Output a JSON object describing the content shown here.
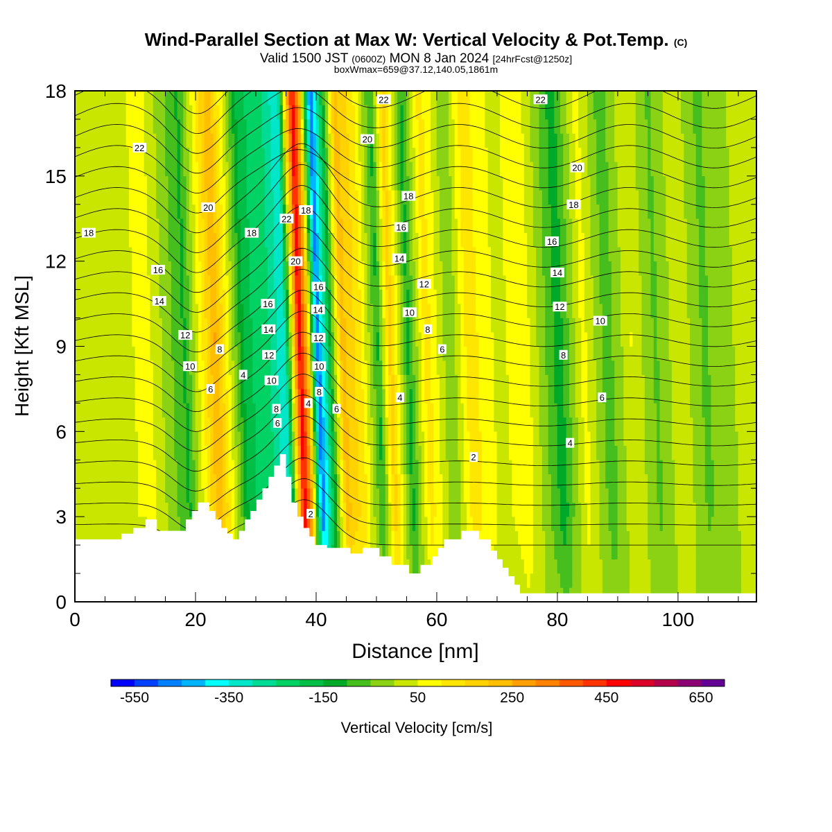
{
  "title": {
    "main": "Wind-Parallel Section at Max W: Vertical Velocity & Pot.Temp.",
    "copyright": "(C)",
    "valid_prefix": "Valid 1500 JST",
    "valid_z": "(0600Z)",
    "valid_date": "MON 8 Jan 2024",
    "forecast": "[24hrFcst@1250z]",
    "boxinfo": "boxWmax=659@37.12,140.05,1861m"
  },
  "chart_data": {
    "type": "heatmap",
    "xlabel": "Distance [nm]",
    "ylabel": "Height [Kft MSL]",
    "xlim": [
      0,
      113
    ],
    "ylim": [
      0,
      18
    ],
    "x_ticks": [
      0,
      20,
      40,
      60,
      80,
      100
    ],
    "x_tick_labels": [
      "0",
      "20",
      "40",
      "60",
      "80",
      "100"
    ],
    "y_ticks": [
      0,
      3,
      6,
      9,
      12,
      15,
      18
    ],
    "y_tick_labels": [
      "0",
      "3",
      "6",
      "9",
      "12",
      "15",
      "18"
    ],
    "colorbar": {
      "label": "Vertical Velocity [cm/s]",
      "levels_min": -600,
      "levels_step": 50,
      "tick_values": [
        -550,
        -350,
        -150,
        50,
        250,
        450,
        650
      ],
      "tick_labels": [
        "-550",
        "-350",
        "-150",
        "50",
        "250",
        "450",
        "650"
      ],
      "colors": [
        "#0000ff",
        "#0040ff",
        "#0080ff",
        "#00b4ff",
        "#00ffff",
        "#00e6c8",
        "#00dc96",
        "#00d264",
        "#00be46",
        "#00aa28",
        "#46be1e",
        "#8cd214",
        "#c8e600",
        "#ffff00",
        "#ffe600",
        "#ffd200",
        "#ffbe00",
        "#ffa000",
        "#ff8200",
        "#ff5a00",
        "#ff3200",
        "#ff0000",
        "#dc0028",
        "#b4004b",
        "#8c0073",
        "#640096"
      ]
    },
    "vertical_velocity_bands": [
      {
        "x": 2,
        "w": 20
      },
      {
        "x": 12,
        "w": 60
      },
      {
        "x": 18,
        "w": -110
      },
      {
        "x": 23,
        "w": 250
      },
      {
        "x": 28,
        "w": -180
      },
      {
        "x": 32,
        "w": -250
      },
      {
        "x": 34.5,
        "w": -350
      },
      {
        "x": 37,
        "w": 500
      },
      {
        "x": 38.2,
        "w": 250
      },
      {
        "x": 40,
        "w": -500
      },
      {
        "x": 42,
        "w": -150
      },
      {
        "x": 44,
        "w": 220
      },
      {
        "x": 47,
        "w": 120
      },
      {
        "x": 50,
        "w": -110
      },
      {
        "x": 52,
        "w": 180
      },
      {
        "x": 55,
        "w": -120
      },
      {
        "x": 58,
        "w": 130
      },
      {
        "x": 62,
        "w": -50
      },
      {
        "x": 65,
        "w": 130
      },
      {
        "x": 70,
        "w": 30
      },
      {
        "x": 74,
        "w": 90
      },
      {
        "x": 80,
        "w": -130
      },
      {
        "x": 84,
        "w": 70
      },
      {
        "x": 88,
        "w": -80
      },
      {
        "x": 92,
        "w": 50
      },
      {
        "x": 96,
        "w": -60
      },
      {
        "x": 100,
        "w": 40
      },
      {
        "x": 104,
        "w": -60
      },
      {
        "x": 109,
        "w": 0
      }
    ],
    "terrain": [
      [
        0,
        2.2
      ],
      [
        7.7,
        2.2
      ],
      [
        7.7,
        2.4
      ],
      [
        9.7,
        2.4
      ],
      [
        9.7,
        2.6
      ],
      [
        11.7,
        2.6
      ],
      [
        11.7,
        2.9
      ],
      [
        13.6,
        2.9
      ],
      [
        13.6,
        2.5
      ],
      [
        18.4,
        2.5
      ],
      [
        18.4,
        2.9
      ],
      [
        19.4,
        2.9
      ],
      [
        19.4,
        3.2
      ],
      [
        20.4,
        3.2
      ],
      [
        20.4,
        3.5
      ],
      [
        22.3,
        3.5
      ],
      [
        22.3,
        3.2
      ],
      [
        23.3,
        3.2
      ],
      [
        23.3,
        2.9
      ],
      [
        24.3,
        2.9
      ],
      [
        24.3,
        2.6
      ],
      [
        25.3,
        2.6
      ],
      [
        25.3,
        2.4
      ],
      [
        26.2,
        2.4
      ],
      [
        26.2,
        2.2
      ],
      [
        27.2,
        2.2
      ],
      [
        27.2,
        2.5
      ],
      [
        28.2,
        2.5
      ],
      [
        28.2,
        2.9
      ],
      [
        29.1,
        2.9
      ],
      [
        29.1,
        3.2
      ],
      [
        30.1,
        3.2
      ],
      [
        30.1,
        3.6
      ],
      [
        31.1,
        3.6
      ],
      [
        31.1,
        4.0
      ],
      [
        32.1,
        4.0
      ],
      [
        32.1,
        4.4
      ],
      [
        33.0,
        4.4
      ],
      [
        33.0,
        4.8
      ],
      [
        34.0,
        4.8
      ],
      [
        34.0,
        5.2
      ],
      [
        35.0,
        5.2
      ],
      [
        35.0,
        4.4
      ],
      [
        35.9,
        4.4
      ],
      [
        35.9,
        3.5
      ],
      [
        36.9,
        3.5
      ],
      [
        36.9,
        3.0
      ],
      [
        37.9,
        3.0
      ],
      [
        37.9,
        2.6
      ],
      [
        38.9,
        2.6
      ],
      [
        38.9,
        2.3
      ],
      [
        39.8,
        2.3
      ],
      [
        39.8,
        2.0
      ],
      [
        41.8,
        2.0
      ],
      [
        41.8,
        1.9
      ],
      [
        45.7,
        1.9
      ],
      [
        45.7,
        1.7
      ],
      [
        47.7,
        1.7
      ],
      [
        47.7,
        1.9
      ],
      [
        50.5,
        1.9
      ],
      [
        50.5,
        1.6
      ],
      [
        52.5,
        1.6
      ],
      [
        52.5,
        1.3
      ],
      [
        55.4,
        1.3
      ],
      [
        55.4,
        1.0
      ],
      [
        57.3,
        1.0
      ],
      [
        57.3,
        1.3
      ],
      [
        59.3,
        1.3
      ],
      [
        59.3,
        1.6
      ],
      [
        60.2,
        1.6
      ],
      [
        60.2,
        1.9
      ],
      [
        61.2,
        1.9
      ],
      [
        61.2,
        2.2
      ],
      [
        64.1,
        2.2
      ],
      [
        64.1,
        2.5
      ],
      [
        67.0,
        2.5
      ],
      [
        67.0,
        2.2
      ],
      [
        69.0,
        2.2
      ],
      [
        69.0,
        1.8
      ],
      [
        70.0,
        1.8
      ],
      [
        70.0,
        1.5
      ],
      [
        70.9,
        1.5
      ],
      [
        70.9,
        1.2
      ],
      [
        71.9,
        1.2
      ],
      [
        71.9,
        0.9
      ],
      [
        72.9,
        0.9
      ],
      [
        72.9,
        0.6
      ],
      [
        73.8,
        0.6
      ],
      [
        73.8,
        0.3
      ],
      [
        113,
        0.3
      ]
    ],
    "theta_contour_labels": [
      {
        "x": 10.7,
        "y": 16.0,
        "text": "22"
      },
      {
        "x": 2.3,
        "y": 13.0,
        "text": "18"
      },
      {
        "x": 22.1,
        "y": 13.9,
        "text": "20"
      },
      {
        "x": 13.8,
        "y": 11.7,
        "text": "16"
      },
      {
        "x": 14.0,
        "y": 10.6,
        "text": "14"
      },
      {
        "x": 18.3,
        "y": 9.4,
        "text": "12"
      },
      {
        "x": 19.1,
        "y": 8.3,
        "text": "10"
      },
      {
        "x": 24.0,
        "y": 8.9,
        "text": "8"
      },
      {
        "x": 22.5,
        "y": 7.5,
        "text": "6"
      },
      {
        "x": 27.9,
        "y": 8.0,
        "text": "4"
      },
      {
        "x": 29.3,
        "y": 13.0,
        "text": "18"
      },
      {
        "x": 35.1,
        "y": 13.5,
        "text": "22"
      },
      {
        "x": 38.3,
        "y": 13.8,
        "text": "18"
      },
      {
        "x": 36.6,
        "y": 12.0,
        "text": "20"
      },
      {
        "x": 32.0,
        "y": 10.5,
        "text": "16"
      },
      {
        "x": 32.1,
        "y": 9.6,
        "text": "14"
      },
      {
        "x": 32.2,
        "y": 8.7,
        "text": "12"
      },
      {
        "x": 32.6,
        "y": 7.8,
        "text": "10"
      },
      {
        "x": 33.4,
        "y": 6.8,
        "text": "8"
      },
      {
        "x": 33.6,
        "y": 6.3,
        "text": "6"
      },
      {
        "x": 40.4,
        "y": 11.1,
        "text": "16"
      },
      {
        "x": 40.3,
        "y": 10.3,
        "text": "14"
      },
      {
        "x": 40.4,
        "y": 9.3,
        "text": "12"
      },
      {
        "x": 40.5,
        "y": 8.3,
        "text": "10"
      },
      {
        "x": 40.5,
        "y": 7.4,
        "text": "8"
      },
      {
        "x": 38.7,
        "y": 7.0,
        "text": "4"
      },
      {
        "x": 43.4,
        "y": 6.8,
        "text": "6"
      },
      {
        "x": 51.2,
        "y": 17.7,
        "text": "22"
      },
      {
        "x": 48.5,
        "y": 16.3,
        "text": "20"
      },
      {
        "x": 55.3,
        "y": 14.3,
        "text": "18"
      },
      {
        "x": 54.1,
        "y": 13.2,
        "text": "16"
      },
      {
        "x": 53.8,
        "y": 12.1,
        "text": "14"
      },
      {
        "x": 57.9,
        "y": 11.2,
        "text": "12"
      },
      {
        "x": 55.5,
        "y": 10.2,
        "text": "10"
      },
      {
        "x": 58.5,
        "y": 9.6,
        "text": "8"
      },
      {
        "x": 60.9,
        "y": 8.9,
        "text": "6"
      },
      {
        "x": 53.9,
        "y": 7.2,
        "text": "4"
      },
      {
        "x": 66.1,
        "y": 5.1,
        "text": "2"
      },
      {
        "x": 39.1,
        "y": 3.1,
        "text": "2"
      },
      {
        "x": 77.2,
        "y": 17.7,
        "text": "22"
      },
      {
        "x": 83.3,
        "y": 15.3,
        "text": "20"
      },
      {
        "x": 82.7,
        "y": 14.0,
        "text": "18"
      },
      {
        "x": 79.1,
        "y": 12.7,
        "text": "16"
      },
      {
        "x": 80.0,
        "y": 11.6,
        "text": "14"
      },
      {
        "x": 80.4,
        "y": 10.4,
        "text": "12"
      },
      {
        "x": 87.1,
        "y": 9.9,
        "text": "10"
      },
      {
        "x": 81.0,
        "y": 8.7,
        "text": "8"
      },
      {
        "x": 87.4,
        "y": 7.2,
        "text": "6"
      },
      {
        "x": 82.1,
        "y": 5.6,
        "text": "4"
      }
    ]
  }
}
